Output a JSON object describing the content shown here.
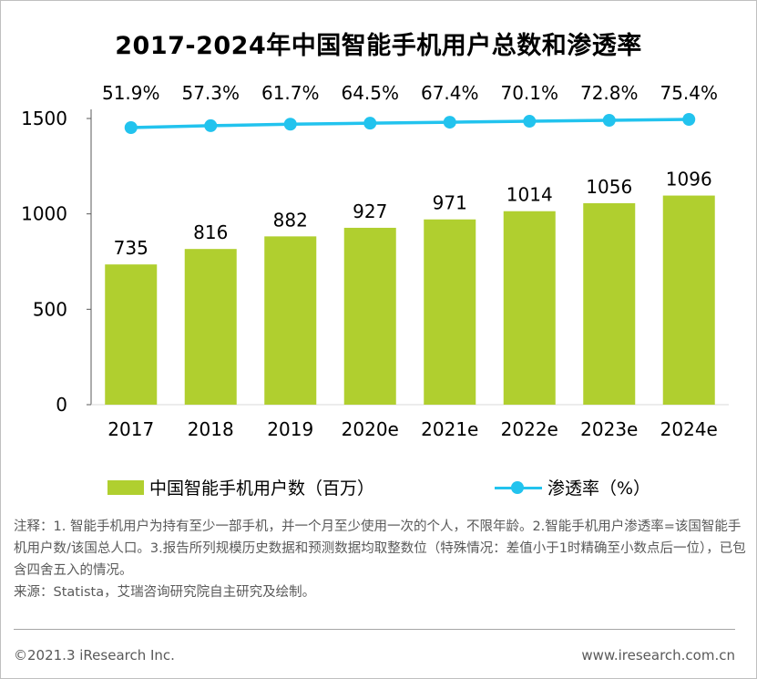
{
  "colors": {
    "bar": "#b0cf2f",
    "line": "#22c3ee",
    "axis": "#595959",
    "text": "#000000",
    "muted": "#595959"
  },
  "chart_data": {
    "type": "bar",
    "title": "2017-2024年中国智能手机用户总数和渗透率",
    "categories": [
      "2017",
      "2018",
      "2019",
      "2020e",
      "2021e",
      "2022e",
      "2023e",
      "2024e"
    ],
    "series": [
      {
        "name": "中国智能手机用户数（百万）",
        "type": "bar",
        "values": [
          735,
          816,
          882,
          927,
          971,
          1014,
          1056,
          1096
        ],
        "labels": [
          "735",
          "816",
          "882",
          "927",
          "971",
          "1014",
          "1056",
          "1096"
        ]
      },
      {
        "name": "渗透率（%）",
        "type": "line",
        "values": [
          51.9,
          57.3,
          61.7,
          64.5,
          67.4,
          70.1,
          72.8,
          75.4
        ],
        "labels": [
          "51.9%",
          "57.3%",
          "61.7%",
          "64.5%",
          "67.4%",
          "70.1%",
          "72.8%",
          "75.4%"
        ]
      }
    ],
    "yticks": [
      "0",
      "500",
      "1000",
      "1500"
    ],
    "ytick_values": [
      0,
      500,
      1000,
      1500
    ],
    "ylim": [
      0,
      1500
    ],
    "y2lim": [
      0,
      100
    ],
    "xlabel": "",
    "ylabel": "",
    "grid": false,
    "legend_position": "bottom"
  },
  "notes": {
    "line1": "注释：1. 智能手机用户为持有至少一部手机，并一个月至少使用一次的个人，不限年龄。2.智能手机用户渗透率=该国智能手机用户数/该国总人口。3.报告所列规模历史数据和预测数据均取整数位（特殊情况：差值小于1时精确至小数点后一位），已包含四舍五入的情况。",
    "line2": "来源：Statista，艾瑞咨询研究院自主研究及绘制。"
  },
  "footer": {
    "left": "©2021.3 iResearch Inc.",
    "right": "www.iresearch.com.cn"
  }
}
